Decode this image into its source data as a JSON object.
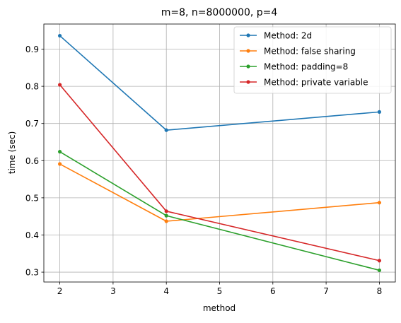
{
  "chart_data": {
    "type": "line",
    "title": "m=8, n=8000000, p=4",
    "xlabel": "method",
    "ylabel": "time (sec)",
    "xlim": [
      1.7,
      8.3
    ],
    "ylim": [
      0.2735,
      0.9675
    ],
    "xticks": [
      2,
      3,
      4,
      5,
      6,
      7,
      8
    ],
    "yticks": [
      0.3,
      0.4,
      0.5,
      0.6,
      0.7,
      0.8,
      0.9
    ],
    "grid": true,
    "legend_position": "top-right",
    "x": [
      2,
      4,
      8
    ],
    "series": [
      {
        "name": "Method: 2d",
        "color": "#1f77b4",
        "values": [
          0.936,
          0.682,
          0.731
        ]
      },
      {
        "name": "Method: false sharing",
        "color": "#ff7f0e",
        "values": [
          0.591,
          0.437,
          0.487
        ]
      },
      {
        "name": "Method: padding=8",
        "color": "#2ca02c",
        "values": [
          0.624,
          0.452,
          0.305
        ]
      },
      {
        "name": "Method: private variable",
        "color": "#d62728",
        "values": [
          0.804,
          0.464,
          0.331
        ]
      }
    ]
  }
}
